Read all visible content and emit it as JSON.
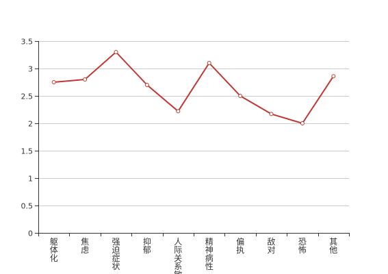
{
  "chart_data": {
    "type": "line",
    "categories": [
      "躯体化",
      "焦虑",
      "强迫症状",
      "抑郁",
      "人际关系敏感",
      "精神病性",
      "偏执",
      "敌对",
      "恐怖",
      "其他"
    ],
    "series": [
      {
        "values": [
          2.75,
          2.8,
          3.3,
          2.7,
          2.22,
          3.1,
          2.5,
          2.17,
          2.0,
          2.86
        ]
      }
    ],
    "ylim": [
      0,
      3.5
    ],
    "yticks": [
      0,
      0.5,
      1,
      1.5,
      2,
      2.5,
      3,
      3.5
    ],
    "ytick_labels": [
      "0",
      "0.5",
      "1",
      "1.5",
      "2",
      "2.5",
      "3",
      "3.5"
    ],
    "grid": true,
    "colors": {
      "line": "#c23531",
      "grid": "#cccccc",
      "axis": "#333333"
    }
  }
}
